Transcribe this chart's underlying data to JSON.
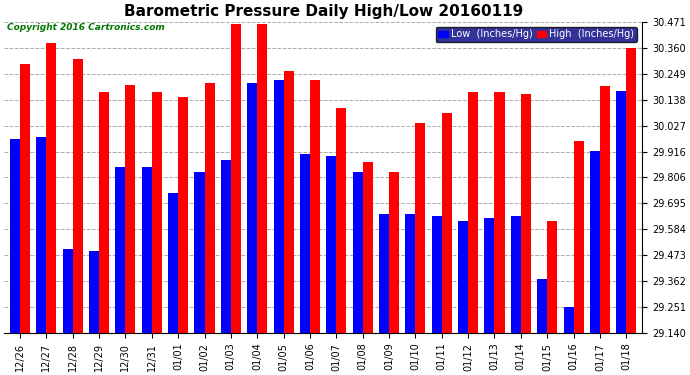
{
  "title": "Barometric Pressure Daily High/Low 20160119",
  "copyright": "Copyright 2016 Cartronics.com",
  "legend_low": "Low  (Inches/Hg)",
  "legend_high": "High  (Inches/Hg)",
  "dates": [
    "12/26",
    "12/27",
    "12/28",
    "12/29",
    "12/30",
    "12/31",
    "01/01",
    "01/02",
    "01/03",
    "01/04",
    "01/05",
    "01/06",
    "01/07",
    "01/08",
    "01/09",
    "01/10",
    "01/11",
    "01/12",
    "01/13",
    "01/14",
    "01/15",
    "01/16",
    "01/17",
    "01/18"
  ],
  "high": [
    30.29,
    30.38,
    30.31,
    30.17,
    30.2,
    30.17,
    30.15,
    30.21,
    30.46,
    30.46,
    30.26,
    30.22,
    30.1,
    29.87,
    29.83,
    30.04,
    30.08,
    30.17,
    30.17,
    30.16,
    29.62,
    29.96,
    30.195,
    30.36
  ],
  "low": [
    29.97,
    29.98,
    29.5,
    29.49,
    29.85,
    29.85,
    29.74,
    29.83,
    29.88,
    30.21,
    30.22,
    29.905,
    29.895,
    29.83,
    29.65,
    29.65,
    29.64,
    29.62,
    29.63,
    29.64,
    29.37,
    29.25,
    29.92,
    30.175
  ],
  "ylim_min": 29.14,
  "ylim_max": 30.471,
  "yticks": [
    29.14,
    29.251,
    29.362,
    29.473,
    29.584,
    29.695,
    29.806,
    29.916,
    30.027,
    30.138,
    30.249,
    30.36,
    30.471
  ],
  "bar_width": 0.38,
  "color_low": "#0000ff",
  "color_high": "#ff0000",
  "bg_color": "#ffffff",
  "grid_color": "#aaaaaa",
  "title_fontsize": 11,
  "tick_fontsize": 7,
  "label_fontsize": 7,
  "copyright_color": "#007700"
}
